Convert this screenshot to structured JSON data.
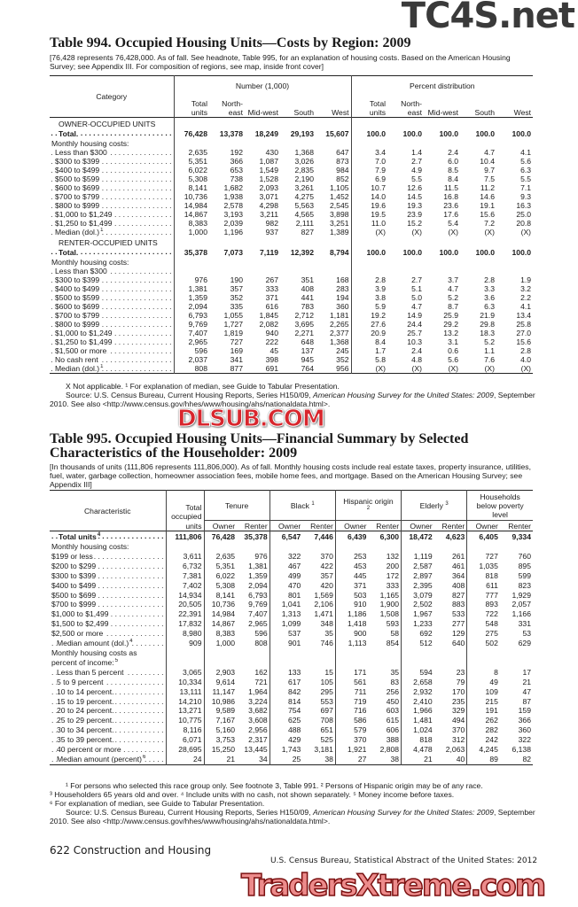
{
  "watermarks": {
    "top": "TC4S.net",
    "middle": "DLSUB.COM",
    "bottom": "TradersXtreme.com"
  },
  "t994": {
    "title": "Table 994. Occupied Housing Units—Costs by Region: 2009",
    "note": "[76,428 represents 76,428,000. As of fall. See headnote, Table 995, for an explanation of housing costs. Based on the American Housing Survey; see Appendix III.  For composition of regions, see map, inside front cover]",
    "headers": {
      "category": "Category",
      "number_group": "Number (1,000)",
      "percent_group": "Percent distribution",
      "columns": [
        "Total units",
        "North-east",
        "Mid-west",
        "South",
        "West",
        "Total units",
        "North-east",
        "Mid-west",
        "South",
        "West"
      ]
    },
    "rows": [
      {
        "type": "sec",
        "label": "OWNER-OCCUPIED UNITS"
      },
      {
        "type": "tot",
        "label": "Total.",
        "values": [
          "76,428",
          "13,378",
          "18,249",
          "29,193",
          "15,607",
          "100.0",
          "100.0",
          "100.0",
          "100.0",
          "100.0"
        ]
      },
      {
        "type": "sub",
        "label": "Monthly housing costs:"
      },
      {
        "type": "row",
        "label": "Less than $300",
        "values": [
          "2,635",
          "192",
          "430",
          "1,368",
          "647",
          "3.4",
          "1.4",
          "2.4",
          "4.7",
          "4.1"
        ]
      },
      {
        "type": "row",
        "label": "$300 to $399",
        "values": [
          "5,351",
          "366",
          "1,087",
          "3,026",
          "873",
          "7.0",
          "2.7",
          "6.0",
          "10.4",
          "5.6"
        ]
      },
      {
        "type": "row",
        "label": "$400 to $499",
        "values": [
          "6,022",
          "653",
          "1,549",
          "2,835",
          "984",
          "7.9",
          "4.9",
          "8.5",
          "9.7",
          "6.3"
        ]
      },
      {
        "type": "row",
        "label": "$500 to $599",
        "values": [
          "5,308",
          "738",
          "1,528",
          "2,190",
          "852",
          "6.9",
          "5.5",
          "8.4",
          "7.5",
          "5.5"
        ]
      },
      {
        "type": "row",
        "label": "$600 to $699",
        "values": [
          "8,141",
          "1,682",
          "2,093",
          "3,261",
          "1,105",
          "10.7",
          "12.6",
          "11.5",
          "11.2",
          "7.1"
        ]
      },
      {
        "type": "row",
        "label": "$700 to $799",
        "values": [
          "10,736",
          "1,938",
          "3,071",
          "4,275",
          "1,452",
          "14.0",
          "14.5",
          "16.8",
          "14.6",
          "9.3"
        ]
      },
      {
        "type": "row",
        "label": "$800 to $999",
        "values": [
          "14,984",
          "2,578",
          "4,298",
          "5,563",
          "2,545",
          "19.6",
          "19.3",
          "23.6",
          "19.1",
          "16.3"
        ]
      },
      {
        "type": "row",
        "label": "$1,000 to $1,249",
        "values": [
          "14,867",
          "3,193",
          "3,211",
          "4,565",
          "3,898",
          "19.5",
          "23.9",
          "17.6",
          "15.6",
          "25.0"
        ]
      },
      {
        "type": "row",
        "label": "$1,250 to $1,499",
        "values": [
          "8,383",
          "2,039",
          "982",
          "2,111",
          "3,251",
          "11.0",
          "15.2",
          "5.4",
          "7.2",
          "20.8"
        ]
      },
      {
        "type": "row",
        "label": "Median (dol.)",
        "sup": "1",
        "values": [
          "1,000",
          "1,196",
          "937",
          "827",
          "1,389",
          "(X)",
          "(X)",
          "(X)",
          "(X)",
          "(X)"
        ]
      },
      {
        "type": "sec",
        "label": "RENTER-OCCUPIED UNITS"
      },
      {
        "type": "tot",
        "label": "Total.",
        "values": [
          "35,378",
          "7,073",
          "7,119",
          "12,392",
          "8,794",
          "100.0",
          "100.0",
          "100.0",
          "100.0",
          "100.0"
        ]
      },
      {
        "type": "sub",
        "label": "Monthly housing costs:"
      },
      {
        "type": "row",
        "label": "Less than $300",
        "values": [
          "",
          "",
          "",
          "",
          "",
          "",
          "",
          "",
          "",
          ""
        ]
      },
      {
        "type": "row",
        "label": "$300 to $399",
        "values": [
          "976",
          "190",
          "267",
          "351",
          "168",
          "2.8",
          "2.7",
          "3.7",
          "2.8",
          "1.9"
        ]
      },
      {
        "type": "row",
        "label": "$400 to $499",
        "values": [
          "1,381",
          "357",
          "333",
          "408",
          "283",
          "3.9",
          "5.1",
          "4.7",
          "3.3",
          "3.2"
        ]
      },
      {
        "type": "row",
        "label": "$500 to $599",
        "values": [
          "1,359",
          "352",
          "371",
          "441",
          "194",
          "3.8",
          "5.0",
          "5.2",
          "3.6",
          "2.2"
        ]
      },
      {
        "type": "row",
        "label": "$600 to $699",
        "values": [
          "2,094",
          "335",
          "616",
          "783",
          "360",
          "5.9",
          "4.7",
          "8.7",
          "6.3",
          "4.1"
        ]
      },
      {
        "type": "row",
        "label": "$700 to $799",
        "values": [
          "6,793",
          "1,055",
          "1,845",
          "2,712",
          "1,181",
          "19.2",
          "14.9",
          "25.9",
          "21.9",
          "13.4"
        ]
      },
      {
        "type": "row",
        "label": "$800 to $999",
        "values": [
          "9,769",
          "1,727",
          "2,082",
          "3,695",
          "2,265",
          "27.6",
          "24.4",
          "29.2",
          "29.8",
          "25.8"
        ]
      },
      {
        "type": "row",
        "label": "$1,000 to $1,249",
        "values": [
          "7,407",
          "1,819",
          "940",
          "2,271",
          "2,377",
          "20.9",
          "25.7",
          "13.2",
          "18.3",
          "27.0"
        ]
      },
      {
        "type": "row",
        "label": "$1,250 to $1,499",
        "values": [
          "2,965",
          "727",
          "222",
          "648",
          "1,368",
          "8.4",
          "10.3",
          "3.1",
          "5.2",
          "15.6"
        ]
      },
      {
        "type": "row",
        "label": "$1,500 or more",
        "values": [
          "596",
          "169",
          "45",
          "137",
          "245",
          "1.7",
          "2.4",
          "0.6",
          "1.1",
          "2.8"
        ]
      },
      {
        "type": "row",
        "label": "No cash rent",
        "values": [
          "2,037",
          "341",
          "398",
          "945",
          "352",
          "5.8",
          "4.8",
          "5.6",
          "7.6",
          "4.0"
        ]
      },
      {
        "type": "row",
        "label": "Median (dol.)",
        "sup": "1",
        "values": [
          "808",
          "877",
          "691",
          "764",
          "956",
          "(X)",
          "(X)",
          "(X)",
          "(X)",
          "(X)"
        ]
      }
    ],
    "footnote": "X Not applicable. ¹ For explanation of median, see Guide to Tabular Presentation.",
    "source_prefix": "Source: U.S. Census Bureau, Current Housing Reports, Series H150/09, ",
    "source_italic": "American Housing Survey for the United States: 2009",
    "source_suffix": ", September 2010. See also <http://www.census.gov/hhes/www/housing/ahs/nationaldata.html>."
  },
  "t995": {
    "title_line1": "Table 995. Occupied Housing Units—Financial Summary by Selected",
    "title_line2": "Characteristics of the Householder: 2009",
    "note": "[In thousands of units (111,806 represents 111,806,000). As of fall. Monthly housing costs include real estate taxes, property insurance, utilities, fuel, water, garbage collection, homeowner association fees, mobile home fees, and mortgage. Based on the American Housing Survey; see Appendix III]",
    "headers": {
      "characteristic": "Characteristic",
      "total": "Total occupied units",
      "groups": [
        {
          "label": "Tenure",
          "sup": ""
        },
        {
          "label": "Black",
          "sup": "1"
        },
        {
          "label": "Hispanic origin",
          "sup": "2"
        },
        {
          "label": "Elderly",
          "sup": "3"
        },
        {
          "label": "Households below poverty level",
          "sup": ""
        }
      ],
      "owner": "Owner",
      "renter": "Renter"
    },
    "rows": [
      {
        "type": "tot",
        "label": "Total units",
        "sup": "4",
        "values": [
          "111,806",
          "76,428",
          "35,378",
          "6,547",
          "7,446",
          "6,439",
          "6,300",
          "18,472",
          "4,623",
          "6,405",
          "9,334"
        ]
      },
      {
        "type": "sub",
        "label": "Monthly housing costs:"
      },
      {
        "type": "row",
        "label": "$199 or less",
        "values": [
          "3,611",
          "2,635",
          "976",
          "322",
          "370",
          "253",
          "132",
          "1,119",
          "261",
          "727",
          "760"
        ]
      },
      {
        "type": "row",
        "label": "$200 to $299",
        "values": [
          "6,732",
          "5,351",
          "1,381",
          "467",
          "422",
          "453",
          "200",
          "2,587",
          "461",
          "1,035",
          "895"
        ]
      },
      {
        "type": "row",
        "label": "$300 to $399",
        "values": [
          "7,381",
          "6,022",
          "1,359",
          "499",
          "357",
          "445",
          "172",
          "2,897",
          "364",
          "818",
          "599"
        ]
      },
      {
        "type": "row",
        "label": "$400 to $499",
        "values": [
          "7,402",
          "5,308",
          "2,094",
          "470",
          "420",
          "371",
          "333",
          "2,395",
          "408",
          "611",
          "823"
        ]
      },
      {
        "type": "row",
        "label": "$500 to $699",
        "values": [
          "14,934",
          "8,141",
          "6,793",
          "801",
          "1,569",
          "503",
          "1,165",
          "3,079",
          "827",
          "777",
          "1,929"
        ]
      },
      {
        "type": "row",
        "label": "$700 to $999",
        "values": [
          "20,505",
          "10,736",
          "9,769",
          "1,041",
          "2,106",
          "910",
          "1,900",
          "2,502",
          "883",
          "893",
          "2,057"
        ]
      },
      {
        "type": "row",
        "label": "$1,000 to $1,499",
        "values": [
          "22,391",
          "14,984",
          "7,407",
          "1,313",
          "1,471",
          "1,186",
          "1,508",
          "1,967",
          "533",
          "722",
          "1,166"
        ]
      },
      {
        "type": "row",
        "label": "$1,500 to $2,499",
        "values": [
          "17,832",
          "14,867",
          "2,965",
          "1,099",
          "348",
          "1,418",
          "593",
          "1,233",
          "277",
          "548",
          "331"
        ]
      },
      {
        "type": "row",
        "label": "$2,500 or more",
        "values": [
          "8,980",
          "8,383",
          "596",
          "537",
          "35",
          "900",
          "58",
          "692",
          "129",
          "275",
          "53"
        ]
      },
      {
        "type": "row",
        "label": "Median amount (dol.)",
        "sup": "4",
        "indent": true,
        "values": [
          "909",
          "1,000",
          "808",
          "901",
          "746",
          "1,113",
          "854",
          "512",
          "640",
          "502",
          "629"
        ]
      },
      {
        "type": "sub",
        "label": "Monthly housing costs as"
      },
      {
        "type": "sub",
        "label": "percent of income:",
        "sup": "5"
      },
      {
        "type": "row",
        "label": "Less than 5 percent",
        "indent": true,
        "values": [
          "3,065",
          "2,903",
          "162",
          "133",
          "15",
          "171",
          "35",
          "594",
          "23",
          "8",
          "17"
        ]
      },
      {
        "type": "row",
        "label": "5 to 9 percent",
        "indent": true,
        "values": [
          "10,334",
          "9,614",
          "721",
          "617",
          "105",
          "561",
          "83",
          "2,658",
          "79",
          "49",
          "21"
        ]
      },
      {
        "type": "row",
        "label": "10 to 14 percent.",
        "indent": true,
        "values": [
          "13,111",
          "11,147",
          "1,964",
          "842",
          "295",
          "711",
          "256",
          "2,932",
          "170",
          "109",
          "47"
        ]
      },
      {
        "type": "row",
        "label": "15 to 19 percent.",
        "indent": true,
        "values": [
          "14,210",
          "10,986",
          "3,224",
          "814",
          "553",
          "719",
          "450",
          "2,410",
          "235",
          "215",
          "87"
        ]
      },
      {
        "type": "row",
        "label": "20 to 24 percent.",
        "indent": true,
        "values": [
          "13,271",
          "9,589",
          "3,682",
          "754",
          "697",
          "716",
          "603",
          "1,966",
          "329",
          "191",
          "159"
        ]
      },
      {
        "type": "row",
        "label": "25 to 29 percent.",
        "indent": true,
        "values": [
          "10,775",
          "7,167",
          "3,608",
          "625",
          "708",
          "586",
          "615",
          "1,481",
          "494",
          "262",
          "366"
        ]
      },
      {
        "type": "row",
        "label": "30 to 34 percent.",
        "indent": true,
        "values": [
          "8,116",
          "5,160",
          "2,956",
          "488",
          "651",
          "579",
          "606",
          "1,024",
          "370",
          "282",
          "360"
        ]
      },
      {
        "type": "row",
        "label": "35 to 39 percent.",
        "indent": true,
        "values": [
          "6,071",
          "3,753",
          "2,317",
          "429",
          "525",
          "370",
          "388",
          "818",
          "312",
          "242",
          "322"
        ]
      },
      {
        "type": "row",
        "label": "40 percent or more",
        "indent": true,
        "values": [
          "28,695",
          "15,250",
          "13,445",
          "1,743",
          "3,181",
          "1,921",
          "2,808",
          "4,478",
          "2,063",
          "4,245",
          "6,138"
        ]
      },
      {
        "type": "row",
        "label": "Median amount (percent)",
        "sup": "6",
        "indent": true,
        "values": [
          "24",
          "21",
          "34",
          "25",
          "38",
          "27",
          "38",
          "21",
          "40",
          "89",
          "82"
        ]
      }
    ],
    "footnotes": [
      "¹ For persons who selected this race group only. See footnote 3, Table 991. ² Persons of Hispanic origin may be of any race.",
      "³ Householders 65 years old and over. ⁴ Include units with no cash, not shown separately. ⁵ Money income before taxes.",
      "⁶ For explanation of median, see Guide to Tabular Presentation."
    ],
    "source_prefix": "Source: U.S. Census Bureau, Current Housing Reports, Series H150/09, ",
    "source_italic": "American Housing Survey for the United States: 2009",
    "source_suffix": ", September 2010. See also <http://www.census.gov/hhes/www/housing/ahs/nationaldata.html>."
  },
  "footer": {
    "page": "622  Construction and Housing",
    "publication": "U.S. Census Bureau, Statistical Abstract of the United States: 2012"
  }
}
